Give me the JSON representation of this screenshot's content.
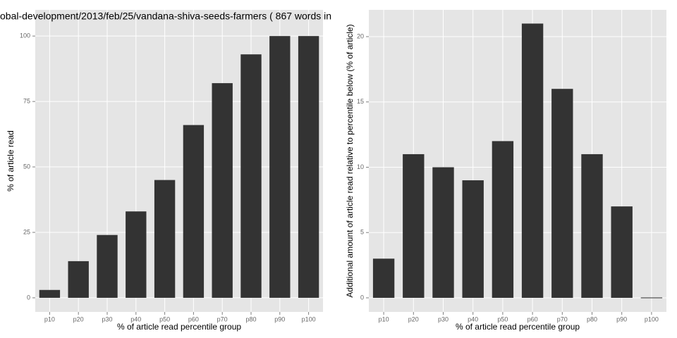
{
  "chart_data": [
    {
      "type": "bar",
      "title": "obal-development/2013/feb/25/vandana-shiva-seeds-farmers ( 867 words in",
      "x_label": "% of article read percentile group",
      "y_label": "% of article read",
      "categories": [
        "p10",
        "p20",
        "p30",
        "p40",
        "p50",
        "p60",
        "p70",
        "p80",
        "p90",
        "p100"
      ],
      "values": [
        3,
        14,
        24,
        33,
        45,
        66,
        82,
        93,
        100,
        100
      ],
      "color": "#333333",
      "ylim": [
        -5.4,
        110
      ],
      "yticks": [
        0,
        25,
        50,
        75,
        100
      ],
      "grid": true
    },
    {
      "type": "bar",
      "x_label": "% of article read percentile group",
      "y_label": "Additional amount of article read relative to percentile below (% of article)",
      "categories": [
        "p10",
        "p20",
        "p30",
        "p40",
        "p50",
        "p60",
        "p70",
        "p80",
        "p90",
        "p100"
      ],
      "values": [
        3,
        11,
        10,
        9,
        12,
        21,
        16,
        11,
        7,
        0
      ],
      "color": "#333333",
      "ylim": [
        -1.08,
        22.05
      ],
      "yticks": [
        0,
        5,
        10,
        15,
        20
      ],
      "grid": true
    }
  ]
}
